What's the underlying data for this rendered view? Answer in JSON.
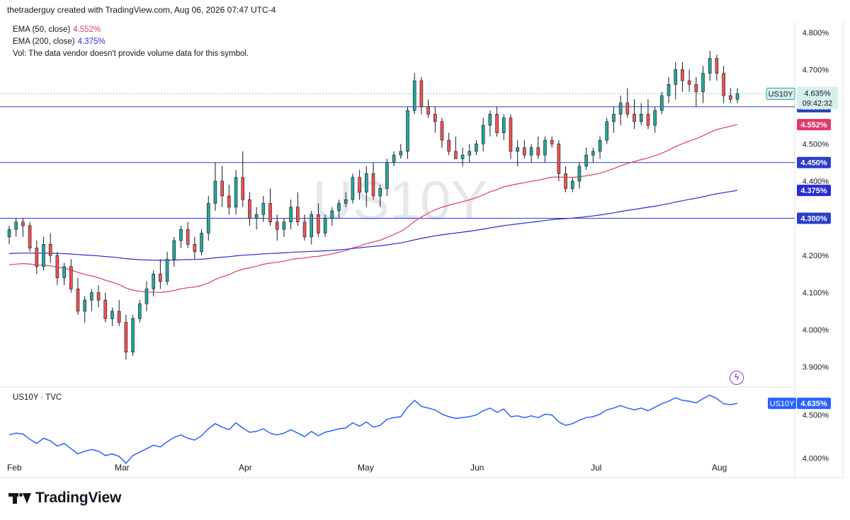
{
  "header": {
    "attribution": "thetraderguy created with TradingView.com, Aug 06, 2026 07:47 UTC-4"
  },
  "legend": {
    "ema50_label": "EMA (50, close)",
    "ema50_value": "4.552%",
    "ema200_label": "EMA (200, close)",
    "ema200_value": "4.375%",
    "vol_text": "Vol: The data vendor doesn't provide volume data for this symbol."
  },
  "watermark": "US10Y",
  "symbol_tag": "US10Y",
  "last_price": "4.635%",
  "countdown": "09:42:32",
  "sub_pane": {
    "title": "US10Y · TVC",
    "symbol_tag": "US10Y",
    "value": "4.635%",
    "yticks": [
      "4.500%",
      "4.000%"
    ]
  },
  "brand": "TradingView",
  "colors": {
    "up": "#26a69a",
    "down": "#ef5350",
    "ema50": "#e03a6a",
    "ema200": "#2a2ad6",
    "hline": "#2a3fc9",
    "line": "#2962ff"
  },
  "chart_data": {
    "type": "candlestick",
    "ylim": [
      3.85,
      4.83
    ],
    "yticks": [
      "4.800%",
      "4.700%",
      "4.600%",
      "4.500%",
      "4.400%",
      "4.300%",
      "4.200%",
      "4.100%",
      "4.000%",
      "3.900%"
    ],
    "xlabels": [
      "Feb",
      "Mar",
      "Apr",
      "May",
      "Jun",
      "Jul",
      "Aug"
    ],
    "horizontal_levels": [
      {
        "value": 4.6,
        "label": "4.600%"
      },
      {
        "value": 4.45,
        "label": "4.450%"
      },
      {
        "value": 4.3,
        "label": "4.300%"
      }
    ],
    "ema50_tag": "4.552%",
    "ema200_tag": "4.375%",
    "candles_ohlc": [
      [
        4.25,
        4.28,
        4.23,
        4.27
      ],
      [
        4.27,
        4.3,
        4.25,
        4.29
      ],
      [
        4.29,
        4.3,
        4.25,
        4.28
      ],
      [
        4.28,
        4.29,
        4.21,
        4.22
      ],
      [
        4.22,
        4.24,
        4.15,
        4.17
      ],
      [
        4.17,
        4.25,
        4.16,
        4.23
      ],
      [
        4.23,
        4.26,
        4.18,
        4.2
      ],
      [
        4.2,
        4.21,
        4.12,
        4.14
      ],
      [
        4.14,
        4.18,
        4.12,
        4.17
      ],
      [
        4.17,
        4.19,
        4.1,
        4.11
      ],
      [
        4.11,
        4.14,
        4.04,
        4.05
      ],
      [
        4.05,
        4.09,
        4.02,
        4.08
      ],
      [
        4.08,
        4.11,
        4.05,
        4.1
      ],
      [
        4.1,
        4.12,
        4.06,
        4.08
      ],
      [
        4.08,
        4.1,
        4.02,
        4.03
      ],
      [
        4.03,
        4.06,
        4.01,
        4.05
      ],
      [
        4.05,
        4.08,
        4.01,
        4.02
      ],
      [
        4.02,
        4.04,
        3.92,
        3.94
      ],
      [
        3.94,
        4.04,
        3.93,
        4.03
      ],
      [
        4.03,
        4.08,
        4.02,
        4.07
      ],
      [
        4.07,
        4.13,
        4.05,
        4.11
      ],
      [
        4.11,
        4.16,
        4.09,
        4.15
      ],
      [
        4.15,
        4.19,
        4.11,
        4.13
      ],
      [
        4.13,
        4.21,
        4.12,
        4.19
      ],
      [
        4.19,
        4.25,
        4.17,
        4.24
      ],
      [
        4.24,
        4.28,
        4.22,
        4.27
      ],
      [
        4.27,
        4.29,
        4.22,
        4.23
      ],
      [
        4.23,
        4.25,
        4.19,
        4.21
      ],
      [
        4.21,
        4.27,
        4.2,
        4.26
      ],
      [
        4.26,
        4.36,
        4.24,
        4.34
      ],
      [
        4.34,
        4.45,
        4.32,
        4.4
      ],
      [
        4.4,
        4.44,
        4.33,
        4.36
      ],
      [
        4.36,
        4.39,
        4.31,
        4.33
      ],
      [
        4.33,
        4.43,
        4.31,
        4.41
      ],
      [
        4.41,
        4.48,
        4.33,
        4.35
      ],
      [
        4.35,
        4.37,
        4.28,
        4.3
      ],
      [
        4.3,
        4.33,
        4.27,
        4.31
      ],
      [
        4.31,
        4.36,
        4.29,
        4.34
      ],
      [
        4.34,
        4.38,
        4.28,
        4.29
      ],
      [
        4.29,
        4.31,
        4.24,
        4.27
      ],
      [
        4.27,
        4.3,
        4.25,
        4.29
      ],
      [
        4.29,
        4.35,
        4.27,
        4.33
      ],
      [
        4.33,
        4.37,
        4.28,
        4.29
      ],
      [
        4.29,
        4.31,
        4.24,
        4.25
      ],
      [
        4.25,
        4.32,
        4.23,
        4.31
      ],
      [
        4.31,
        4.34,
        4.25,
        4.26
      ],
      [
        4.26,
        4.31,
        4.25,
        4.3
      ],
      [
        4.3,
        4.33,
        4.28,
        4.32
      ],
      [
        4.32,
        4.35,
        4.3,
        4.34
      ],
      [
        4.34,
        4.37,
        4.33,
        4.35
      ],
      [
        4.35,
        4.42,
        4.34,
        4.41
      ],
      [
        4.41,
        4.43,
        4.35,
        4.37
      ],
      [
        4.37,
        4.44,
        4.33,
        4.42
      ],
      [
        4.42,
        4.45,
        4.35,
        4.36
      ],
      [
        4.36,
        4.39,
        4.33,
        4.38
      ],
      [
        4.38,
        4.46,
        4.36,
        4.45
      ],
      [
        4.45,
        4.48,
        4.44,
        4.47
      ],
      [
        4.47,
        4.5,
        4.46,
        4.48
      ],
      [
        4.48,
        4.6,
        4.46,
        4.59
      ],
      [
        4.59,
        4.69,
        4.58,
        4.67
      ],
      [
        4.67,
        4.68,
        4.58,
        4.6
      ],
      [
        4.6,
        4.62,
        4.57,
        4.58
      ],
      [
        4.58,
        4.6,
        4.53,
        4.56
      ],
      [
        4.56,
        4.57,
        4.49,
        4.51
      ],
      [
        4.51,
        4.53,
        4.47,
        4.48
      ],
      [
        4.48,
        4.52,
        4.46,
        4.46
      ],
      [
        4.46,
        4.49,
        4.44,
        4.47
      ],
      [
        4.47,
        4.5,
        4.45,
        4.48
      ],
      [
        4.48,
        4.51,
        4.47,
        4.5
      ],
      [
        4.5,
        4.57,
        4.48,
        4.55
      ],
      [
        4.55,
        4.59,
        4.52,
        4.58
      ],
      [
        4.58,
        4.6,
        4.52,
        4.53
      ],
      [
        4.53,
        4.58,
        4.51,
        4.57
      ],
      [
        4.57,
        4.58,
        4.46,
        4.48
      ],
      [
        4.48,
        4.51,
        4.44,
        4.49
      ],
      [
        4.49,
        4.51,
        4.46,
        4.47
      ],
      [
        4.47,
        4.5,
        4.45,
        4.49
      ],
      [
        4.49,
        4.52,
        4.46,
        4.47
      ],
      [
        4.47,
        4.52,
        4.45,
        4.51
      ],
      [
        4.51,
        4.52,
        4.49,
        4.5
      ],
      [
        4.5,
        4.51,
        4.4,
        4.42
      ],
      [
        4.42,
        4.44,
        4.37,
        4.38
      ],
      [
        4.38,
        4.41,
        4.37,
        4.4
      ],
      [
        4.4,
        4.45,
        4.38,
        4.44
      ],
      [
        4.44,
        4.49,
        4.43,
        4.47
      ],
      [
        4.47,
        4.49,
        4.45,
        4.48
      ],
      [
        4.48,
        4.52,
        4.46,
        4.51
      ],
      [
        4.51,
        4.57,
        4.5,
        4.56
      ],
      [
        4.56,
        4.6,
        4.53,
        4.58
      ],
      [
        4.58,
        4.63,
        4.55,
        4.61
      ],
      [
        4.61,
        4.65,
        4.57,
        4.58
      ],
      [
        4.58,
        4.62,
        4.54,
        4.56
      ],
      [
        4.56,
        4.61,
        4.55,
        4.58
      ],
      [
        4.58,
        4.62,
        4.54,
        4.55
      ],
      [
        4.55,
        4.6,
        4.53,
        4.59
      ],
      [
        4.59,
        4.64,
        4.58,
        4.63
      ],
      [
        4.63,
        4.68,
        4.61,
        4.66
      ],
      [
        4.66,
        4.72,
        4.62,
        4.7
      ],
      [
        4.7,
        4.72,
        4.64,
        4.67
      ],
      [
        4.67,
        4.7,
        4.64,
        4.66
      ],
      [
        4.66,
        4.68,
        4.6,
        4.64
      ],
      [
        4.64,
        4.71,
        4.61,
        4.69
      ],
      [
        4.69,
        4.75,
        4.67,
        4.73
      ],
      [
        4.73,
        4.74,
        4.67,
        4.69
      ],
      [
        4.69,
        4.71,
        4.61,
        4.63
      ],
      [
        4.63,
        4.65,
        4.61,
        4.62
      ],
      [
        4.62,
        4.65,
        4.61,
        4.635
      ]
    ],
    "ema50": [
      4.175,
      4.44,
      4.552
    ],
    "ema200": [
      4.205,
      4.3,
      4.375
    ],
    "sub_line": [
      4.45,
      4.635
    ]
  }
}
